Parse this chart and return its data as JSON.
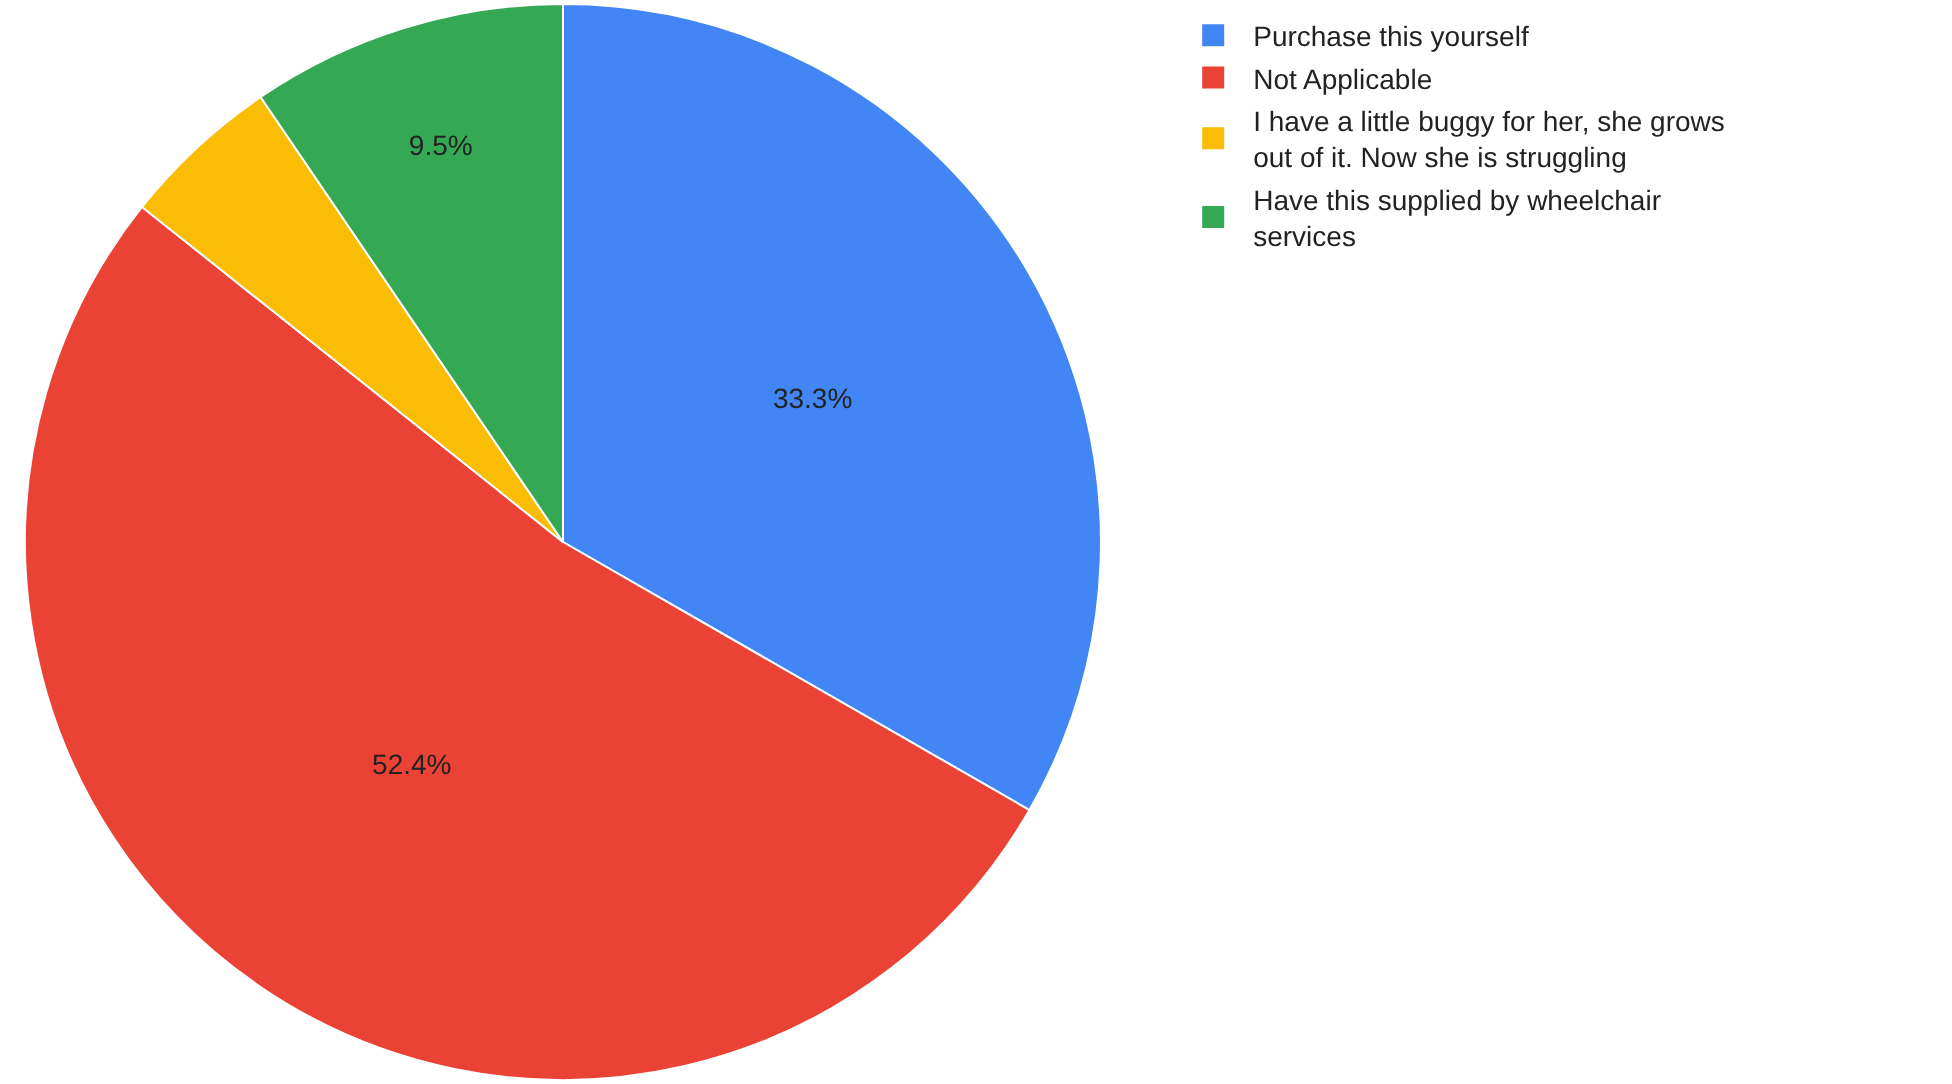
{
  "chart_data": {
    "type": "pie",
    "categories": [
      "Purchase this yourself",
      "Not Applicable",
      "I have a little buggy for her, she grows out of it. Now she is struggling",
      "Have this supplied by wheelchair services"
    ],
    "values": [
      33.3,
      52.4,
      4.8,
      9.5
    ],
    "colors": [
      "#4285f4",
      "#ea4335",
      "#fbbc04",
      "#34a853"
    ],
    "value_labels": [
      "33.3%",
      "52.4%",
      null,
      "9.5%"
    ],
    "legend": "top right"
  }
}
